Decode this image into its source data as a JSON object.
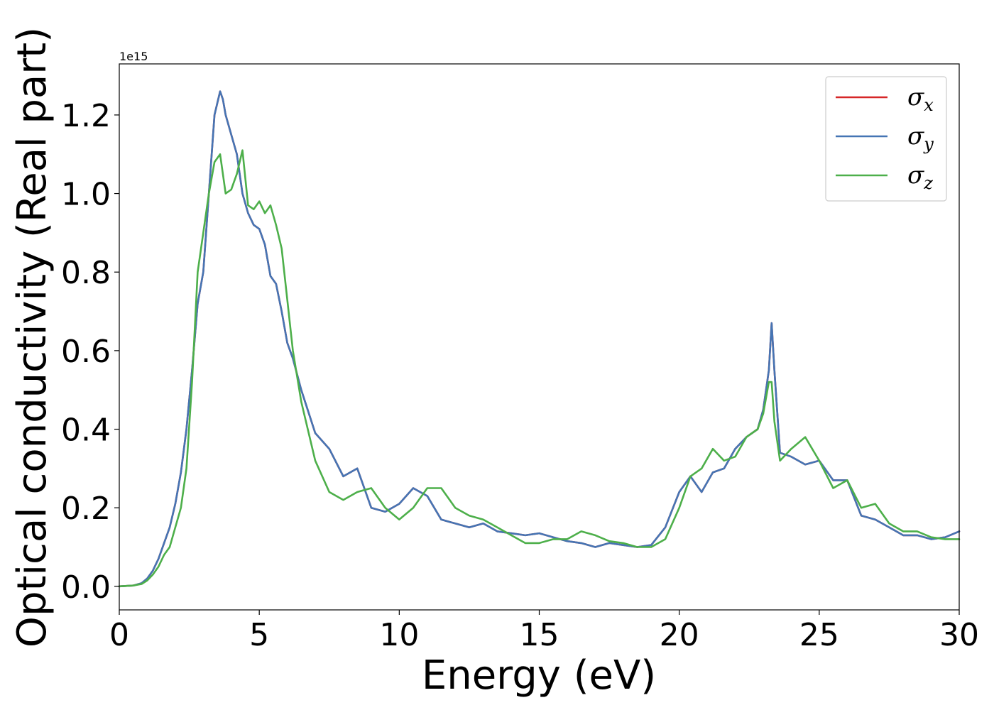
{
  "chart_data": {
    "type": "line",
    "title": "",
    "xlabel": "Energy (eV)",
    "ylabel": "Optical conductivity (Real part)",
    "y_offset_text": "1e15",
    "xlim": [
      0,
      30
    ],
    "ylim": [
      -0.06,
      1.33
    ],
    "y_scale_multiplier": 1000000000000000.0,
    "x_ticks": [
      0,
      5,
      10,
      15,
      20,
      25,
      30
    ],
    "x_tick_labels": [
      "0",
      "5",
      "10",
      "15",
      "20",
      "25",
      "30"
    ],
    "y_ticks": [
      0.0,
      0.2,
      0.4,
      0.6,
      0.8,
      1.0,
      1.2
    ],
    "y_tick_labels": [
      "0.0",
      "0.2",
      "0.4",
      "0.6",
      "0.8",
      "1.0",
      "1.2"
    ],
    "grid": false,
    "legend_position": "top-right",
    "series": [
      {
        "name": "σx",
        "legend_base": "σ",
        "legend_sub": "x",
        "color": "#d62728",
        "x": [
          0,
          0.5,
          0.8,
          1.0,
          1.2,
          1.4,
          1.6,
          1.8,
          2.0,
          2.2,
          2.4,
          2.6,
          2.8,
          3.0,
          3.2,
          3.4,
          3.6,
          3.7,
          3.8,
          4.0,
          4.2,
          4.4,
          4.6,
          4.8,
          5.0,
          5.2,
          5.4,
          5.6,
          5.8,
          6.0,
          6.2,
          6.5,
          7.0,
          7.5,
          8.0,
          8.5,
          9.0,
          9.5,
          10.0,
          10.5,
          11.0,
          11.5,
          12.0,
          12.5,
          13.0,
          13.5,
          14.0,
          14.5,
          15.0,
          15.5,
          16.0,
          16.5,
          17.0,
          17.5,
          18.0,
          18.5,
          19.0,
          19.5,
          20.0,
          20.4,
          20.8,
          21.2,
          21.6,
          22.0,
          22.4,
          22.8,
          23.0,
          23.2,
          23.3,
          23.4,
          23.6,
          24.0,
          24.5,
          25.0,
          25.5,
          26.0,
          26.5,
          27.0,
          27.5,
          28.0,
          28.5,
          29.0,
          29.5,
          30.0
        ],
        "values": [
          0.0,
          0.002,
          0.008,
          0.02,
          0.04,
          0.07,
          0.11,
          0.15,
          0.21,
          0.29,
          0.4,
          0.55,
          0.72,
          0.8,
          1.0,
          1.2,
          1.26,
          1.24,
          1.2,
          1.15,
          1.1,
          1.0,
          0.95,
          0.92,
          0.91,
          0.87,
          0.79,
          0.77,
          0.7,
          0.62,
          0.58,
          0.5,
          0.39,
          0.35,
          0.28,
          0.3,
          0.2,
          0.19,
          0.21,
          0.25,
          0.23,
          0.17,
          0.16,
          0.15,
          0.16,
          0.14,
          0.135,
          0.13,
          0.135,
          0.125,
          0.115,
          0.11,
          0.1,
          0.11,
          0.105,
          0.1,
          0.105,
          0.15,
          0.24,
          0.28,
          0.24,
          0.29,
          0.3,
          0.35,
          0.38,
          0.4,
          0.45,
          0.55,
          0.67,
          0.55,
          0.34,
          0.33,
          0.31,
          0.32,
          0.27,
          0.27,
          0.18,
          0.17,
          0.15,
          0.13,
          0.13,
          0.12,
          0.125,
          0.14
        ]
      },
      {
        "name": "σy",
        "legend_base": "σ",
        "legend_sub": "y",
        "color": "#4575b4",
        "x": [
          0,
          0.5,
          0.8,
          1.0,
          1.2,
          1.4,
          1.6,
          1.8,
          2.0,
          2.2,
          2.4,
          2.6,
          2.8,
          3.0,
          3.2,
          3.4,
          3.6,
          3.7,
          3.8,
          4.0,
          4.2,
          4.4,
          4.6,
          4.8,
          5.0,
          5.2,
          5.4,
          5.6,
          5.8,
          6.0,
          6.2,
          6.5,
          7.0,
          7.5,
          8.0,
          8.5,
          9.0,
          9.5,
          10.0,
          10.5,
          11.0,
          11.5,
          12.0,
          12.5,
          13.0,
          13.5,
          14.0,
          14.5,
          15.0,
          15.5,
          16.0,
          16.5,
          17.0,
          17.5,
          18.0,
          18.5,
          19.0,
          19.5,
          20.0,
          20.4,
          20.8,
          21.2,
          21.6,
          22.0,
          22.4,
          22.8,
          23.0,
          23.2,
          23.3,
          23.4,
          23.6,
          24.0,
          24.5,
          25.0,
          25.5,
          26.0,
          26.5,
          27.0,
          27.5,
          28.0,
          28.5,
          29.0,
          29.5,
          30.0
        ],
        "values": [
          0.0,
          0.002,
          0.008,
          0.02,
          0.04,
          0.07,
          0.11,
          0.15,
          0.21,
          0.29,
          0.4,
          0.55,
          0.72,
          0.8,
          1.0,
          1.2,
          1.26,
          1.24,
          1.2,
          1.15,
          1.1,
          1.0,
          0.95,
          0.92,
          0.91,
          0.87,
          0.79,
          0.77,
          0.7,
          0.62,
          0.58,
          0.5,
          0.39,
          0.35,
          0.28,
          0.3,
          0.2,
          0.19,
          0.21,
          0.25,
          0.23,
          0.17,
          0.16,
          0.15,
          0.16,
          0.14,
          0.135,
          0.13,
          0.135,
          0.125,
          0.115,
          0.11,
          0.1,
          0.11,
          0.105,
          0.1,
          0.105,
          0.15,
          0.24,
          0.28,
          0.24,
          0.29,
          0.3,
          0.35,
          0.38,
          0.4,
          0.45,
          0.55,
          0.67,
          0.55,
          0.34,
          0.33,
          0.31,
          0.32,
          0.27,
          0.27,
          0.18,
          0.17,
          0.15,
          0.13,
          0.13,
          0.12,
          0.125,
          0.14
        ]
      },
      {
        "name": "σz",
        "legend_base": "σ",
        "legend_sub": "z",
        "color": "#4daf4a",
        "x": [
          0,
          0.5,
          0.8,
          1.0,
          1.2,
          1.4,
          1.6,
          1.8,
          2.0,
          2.2,
          2.4,
          2.6,
          2.8,
          3.0,
          3.2,
          3.4,
          3.6,
          3.8,
          4.0,
          4.2,
          4.4,
          4.6,
          4.8,
          5.0,
          5.2,
          5.4,
          5.6,
          5.8,
          6.0,
          6.2,
          6.5,
          7.0,
          7.5,
          8.0,
          8.5,
          9.0,
          9.5,
          10.0,
          10.5,
          11.0,
          11.5,
          12.0,
          12.5,
          13.0,
          13.5,
          14.0,
          14.5,
          15.0,
          15.5,
          16.0,
          16.5,
          17.0,
          17.5,
          18.0,
          18.5,
          19.0,
          19.5,
          20.0,
          20.4,
          20.8,
          21.2,
          21.6,
          22.0,
          22.4,
          22.8,
          23.0,
          23.2,
          23.3,
          23.4,
          23.6,
          24.0,
          24.5,
          25.0,
          25.5,
          26.0,
          26.5,
          27.0,
          27.5,
          28.0,
          28.5,
          29.0,
          29.5,
          30.0
        ],
        "values": [
          0.0,
          0.002,
          0.006,
          0.015,
          0.03,
          0.05,
          0.08,
          0.1,
          0.15,
          0.2,
          0.3,
          0.52,
          0.8,
          0.9,
          1.0,
          1.08,
          1.1,
          1.0,
          1.01,
          1.05,
          1.11,
          0.97,
          0.96,
          0.98,
          0.95,
          0.97,
          0.92,
          0.86,
          0.73,
          0.6,
          0.47,
          0.32,
          0.24,
          0.22,
          0.24,
          0.25,
          0.2,
          0.17,
          0.2,
          0.25,
          0.25,
          0.2,
          0.18,
          0.17,
          0.15,
          0.13,
          0.11,
          0.11,
          0.12,
          0.12,
          0.14,
          0.13,
          0.115,
          0.11,
          0.1,
          0.1,
          0.12,
          0.2,
          0.28,
          0.3,
          0.35,
          0.32,
          0.33,
          0.38,
          0.4,
          0.44,
          0.52,
          0.52,
          0.42,
          0.32,
          0.35,
          0.38,
          0.32,
          0.25,
          0.27,
          0.2,
          0.21,
          0.16,
          0.14,
          0.14,
          0.125,
          0.12,
          0.12
        ]
      }
    ]
  }
}
